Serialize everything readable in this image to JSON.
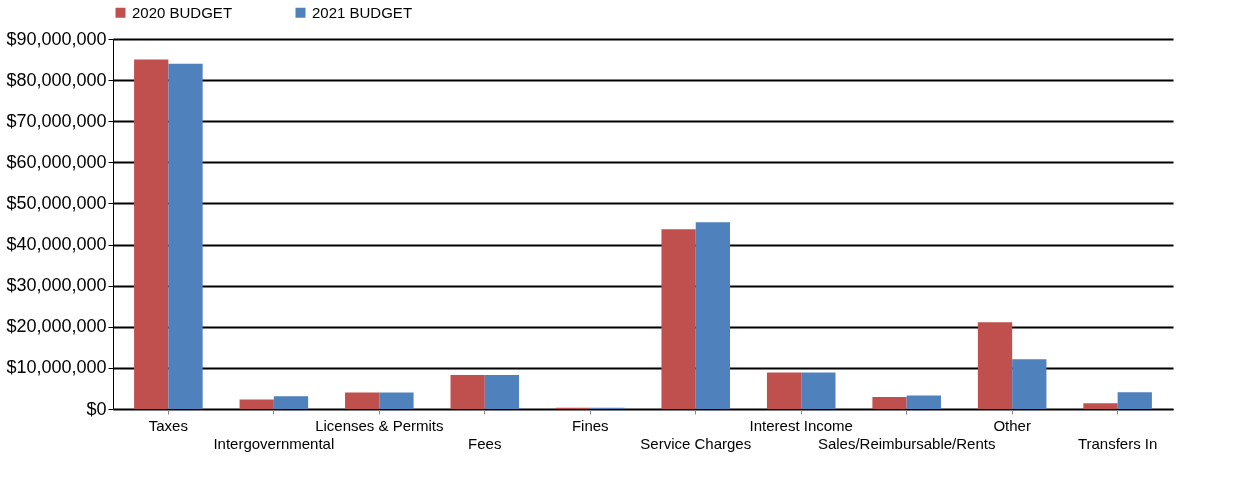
{
  "chart_data": {
    "type": "bar",
    "categories": [
      "Taxes",
      "Intergovernmental",
      "Licenses & Permits",
      "Fees",
      "Fines",
      "Service Charges",
      "Interest Income",
      "Sales/Reimbursable/Rents",
      "Other",
      "Transfers In"
    ],
    "series": [
      {
        "name": "2020 BUDGET",
        "color": "#c0504d",
        "values": [
          85000000,
          2300000,
          4000000,
          8300000,
          300000,
          43700000,
          8900000,
          2900000,
          21100000,
          1400000
        ]
      },
      {
        "name": "2021 BUDGET",
        "color": "#4f81bd",
        "values": [
          84000000,
          3100000,
          4000000,
          8300000,
          300000,
          45400000,
          8900000,
          3300000,
          12100000,
          4100000
        ]
      }
    ],
    "ylim": [
      0,
      90000000
    ],
    "yticks": [
      {
        "value": 0,
        "label": "$0"
      },
      {
        "value": 10000000,
        "label": "$10,000,000"
      },
      {
        "value": 20000000,
        "label": "$20,000,000"
      },
      {
        "value": 30000000,
        "label": "$30,000,000"
      },
      {
        "value": 40000000,
        "label": "$40,000,000"
      },
      {
        "value": 50000000,
        "label": "$50,000,000"
      },
      {
        "value": 60000000,
        "label": "$60,000,000"
      },
      {
        "value": 70000000,
        "label": "$70,000,000"
      },
      {
        "value": 80000000,
        "label": "$80,000,000"
      },
      {
        "value": 90000000,
        "label": "$90,000,000"
      }
    ],
    "grid": "y",
    "legend": "top"
  }
}
